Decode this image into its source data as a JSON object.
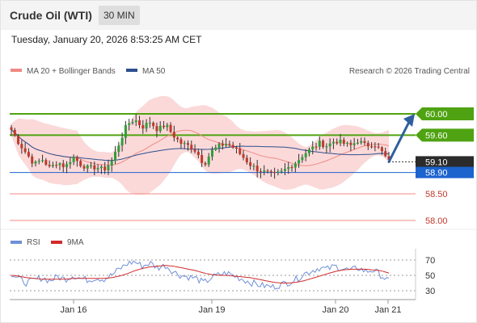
{
  "header": {
    "instrument": "Crude Oil (WTI)",
    "timeframe": "30 MIN"
  },
  "datetime": "Tuesday, January 20, 2026 8:53:25 AM CET",
  "legend": {
    "ma20_label": "MA 20 + Bollinger Bands",
    "ma50_label": "MA 50",
    "credit": "Research © 2026 Trading Central",
    "rsi_label": "RSI",
    "rsi_ma_label": "9MA"
  },
  "colors": {
    "ma20": "#f08a84",
    "ma50": "#2c4f8f",
    "bollinger_fill": "#fbd9d9",
    "candle_up": "#2f9e3a",
    "candle_down": "#c0392b",
    "resistance": "#4fa312",
    "support": "#1d63ce",
    "weak_support": "#f08a84",
    "arrow": "#2f5f9e",
    "rsi": "#6f8fd8",
    "rsi_ma": "#d22a2a"
  },
  "chart_data": [
    {
      "type": "candlestick",
      "title": "",
      "price_range": [
        57.9,
        60.25
      ],
      "x": [
        "Jan 16",
        "Jan 19",
        "Jan 20",
        "Jan 21"
      ],
      "current_price": "59.10",
      "levels": [
        {
          "label": "60.00",
          "value": 60.0,
          "style": "resistance"
        },
        {
          "label": "59.60",
          "value": 59.6,
          "style": "resistance"
        },
        {
          "label": "59.10",
          "value": 59.1,
          "style": "current"
        },
        {
          "label": "58.90",
          "value": 58.9,
          "style": "pivot"
        },
        {
          "label": "58.50",
          "value": 58.5,
          "style": "support"
        },
        {
          "label": "58.00",
          "value": 58.0,
          "style": "support"
        }
      ],
      "price_path": [
        59.7,
        59.45,
        59.25,
        59.05,
        59.15,
        58.98,
        59.1,
        59.0,
        59.2,
        59.05,
        58.98,
        59.0,
        58.95,
        59.1,
        59.45,
        59.8,
        59.9,
        59.75,
        59.85,
        59.7,
        59.8,
        59.6,
        59.45,
        59.4,
        59.3,
        59.05,
        59.3,
        59.4,
        59.45,
        59.35,
        59.2,
        59.05,
        58.95,
        58.9,
        58.85,
        58.9,
        59.0,
        59.1,
        59.25,
        59.35,
        59.45,
        59.4,
        59.5,
        59.45,
        59.4,
        59.5,
        59.4,
        59.45,
        59.3,
        59.1
      ],
      "forecast": {
        "from": 59.1,
        "to": 60.0
      }
    },
    {
      "type": "line",
      "title": "",
      "ylim": [
        25,
        75
      ],
      "y_ticks": [
        "70",
        "50",
        "30"
      ],
      "series": [
        {
          "name": "RSI",
          "values": [
            52,
            45,
            40,
            44,
            47,
            43,
            48,
            45,
            50,
            46,
            44,
            47,
            45,
            50,
            58,
            65,
            68,
            62,
            66,
            60,
            63,
            55,
            50,
            48,
            46,
            40,
            47,
            51,
            53,
            49,
            45,
            41,
            38,
            36,
            35,
            38,
            41,
            45,
            52,
            56,
            60,
            58,
            62,
            59,
            56,
            60,
            55,
            57,
            50,
            42
          ]
        },
        {
          "name": "9MA",
          "values": [
            50,
            49,
            47,
            46,
            45,
            45,
            45,
            45,
            46,
            46,
            46,
            46,
            46,
            47,
            49,
            52,
            56,
            59,
            61,
            62,
            63,
            62,
            60,
            58,
            56,
            53,
            51,
            50,
            50,
            49,
            48,
            47,
            45,
            43,
            41,
            40,
            40,
            41,
            43,
            46,
            49,
            52,
            55,
            57,
            58,
            58,
            58,
            57,
            56,
            53
          ]
        }
      ]
    }
  ]
}
